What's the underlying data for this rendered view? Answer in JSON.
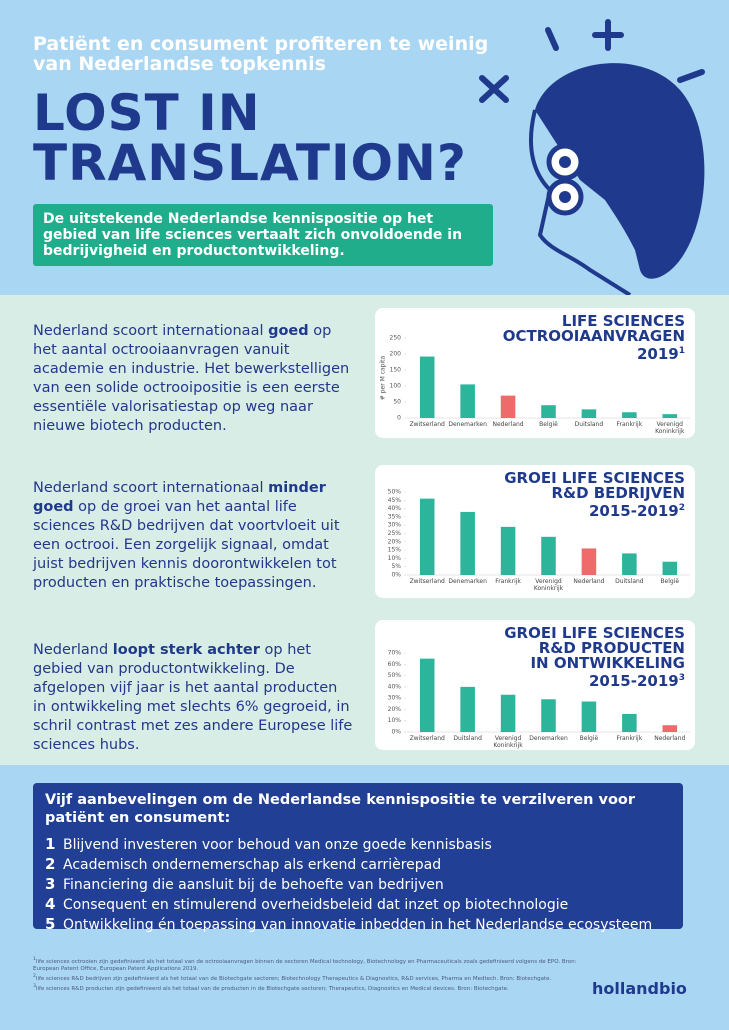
{
  "header": {
    "subtitle": "Patiënt en consument profiteren te weinig van Nederlandse topkennis",
    "title": "LOST IN TRANSLATION?",
    "intro": "De uitstekende Nederlandse kennispositie op het gebied van life sciences vertaalt zich onvoldoende in bedrijvigheid en productontwikkeling."
  },
  "sections": [
    {
      "text_before": "Nederland scoort internationaal ",
      "emphasis": "goed",
      "text_after": " op het aantal octrooiaanvragen vanuit academie en industrie. Het bewerkstelligen van een solide octrooipositie is een eerste essentiële valorisatiestap op weg naar nieuwe biotech producten."
    },
    {
      "text_before": "Nederland scoort internationaal ",
      "emphasis": "minder goed",
      "text_after": " op de groei van het aantal life sciences R&D bedrijven dat voortvloeit uit een octrooi. Een zorgelijk signaal, omdat juist bedrijven kennis doorontwikkelen tot producten en praktische toepassingen."
    },
    {
      "text_before": "Nederland ",
      "emphasis": "loopt sterk achter",
      "text_after": " op het gebied van productontwikkeling. De afgelopen vijf jaar is het aantal producten in ontwikkeling met slechts 6% gegroeid, in schril contrast met zes andere Europese life sciences hubs."
    }
  ],
  "chart_data": [
    {
      "type": "bar",
      "title": [
        "LIFE SCIENCES",
        "OCTROOIAANVRAGEN",
        "2019"
      ],
      "footnote": "1",
      "y_label": "# per M capita",
      "categories": [
        "Zwitserland",
        "Denemarken",
        "Nederland",
        "België",
        "Duitsland",
        "Frankrijk",
        "Verenigd Koninkrijk"
      ],
      "values": [
        192,
        105,
        70,
        40,
        27,
        18,
        12
      ],
      "colors": [
        "#2db59b",
        "#2db59b",
        "#ef6b6b",
        "#2db59b",
        "#2db59b",
        "#2db59b",
        "#2db59b"
      ],
      "ylim": [
        0,
        250
      ],
      "yticks": [
        0,
        50,
        100,
        150,
        200,
        250
      ]
    },
    {
      "type": "bar",
      "title": [
        "GROEI LIFE SCIENCES",
        "R&D BEDRIJVEN",
        "2015-2019"
      ],
      "footnote": "2",
      "categories": [
        "Zwitserland",
        "Denemarken",
        "Frankrijk",
        "Verenigd Koninkrijk",
        "Nederland",
        "Duitsland",
        "België"
      ],
      "values": [
        46,
        38,
        29,
        23,
        16,
        13,
        8
      ],
      "colors": [
        "#2db59b",
        "#2db59b",
        "#2db59b",
        "#2db59b",
        "#ef6b6b",
        "#2db59b",
        "#2db59b"
      ],
      "ylim": [
        0,
        50
      ],
      "yticks": [
        {
          "value": 0,
          "label": "0%"
        },
        {
          "value": 5,
          "label": "5%"
        },
        {
          "value": 10,
          "label": "10%"
        },
        {
          "value": 15,
          "label": "15%"
        },
        {
          "value": 20,
          "label": "20%"
        },
        {
          "value": 25,
          "label": "25%"
        },
        {
          "value": 30,
          "label": "30%"
        },
        {
          "value": 35,
          "label": "35%"
        },
        {
          "value": 40,
          "label": "40%"
        },
        {
          "value": 45,
          "label": "45%"
        },
        {
          "value": 50,
          "label": "50%"
        }
      ]
    },
    {
      "type": "bar",
      "title": [
        "GROEI LIFE SCIENCES",
        "R&D PRODUCTEN",
        "IN ONTWIKKELING",
        "2015-2019"
      ],
      "footnote": "3",
      "categories": [
        "Zwitserland",
        "Duitsland",
        "Verenigd Koninkrijk",
        "Denemarken",
        "België",
        "Frankrijk",
        "Nederland"
      ],
      "values": [
        65,
        40,
        33,
        29,
        27,
        16,
        6
      ],
      "colors": [
        "#2db59b",
        "#2db59b",
        "#2db59b",
        "#2db59b",
        "#2db59b",
        "#2db59b",
        "#ef6b6b"
      ],
      "ylim": [
        0,
        70
      ],
      "yticks": [
        {
          "value": 0,
          "label": "0%"
        },
        {
          "value": 10,
          "label": "10%"
        },
        {
          "value": 20,
          "label": "20%"
        },
        {
          "value": 30,
          "label": "30%"
        },
        {
          "value": 40,
          "label": "40%"
        },
        {
          "value": 50,
          "label": "50%"
        },
        {
          "value": 60,
          "label": "60%"
        },
        {
          "value": 70,
          "label": "70%"
        }
      ]
    }
  ],
  "recommendations": {
    "heading": "Vijf aanbevelingen om de Nederlandse kennispositie te verzilveren voor patiënt en consument:",
    "items": [
      {
        "number": "1",
        "text": "Blijvend investeren voor behoud van onze goede kennisbasis"
      },
      {
        "number": "2",
        "text": "Academisch ondernemerschap als erkend carrièrepad"
      },
      {
        "number": "3",
        "text": "Financiering die aansluit bij de behoefte van bedrijven"
      },
      {
        "number": "4",
        "text": "Consequent en stimulerend overheidsbeleid dat inzet op biotechnologie"
      },
      {
        "number": "5",
        "text": "Ontwikkeling én toepassing van innovatie inbedden in het Nederlandse ecosysteem"
      }
    ]
  },
  "footnotes": [
    {
      "marker": "1",
      "text": "life sciences octrooien zijn gedefinieerd als het totaal van de octrooiaanvragen binnen de sectoren Medical technology, Biotechnology en Pharmaceuticals zoals gedefinieerd volgens de EPO. Bron: European Patent Office, European Patent Applications 2019."
    },
    {
      "marker": "2",
      "text": "life sciences R&D bedrijven zijn gedefinieerd als het totaal van de Biotechgate sectoren; Biotechnology Therapeutics & Diagnostics, R&D services, Pharma en Medtech. Bron: Biotechgate."
    },
    {
      "marker": "3",
      "text": "life sciences R&D producten zijn gedefinieerd als het totaal van de producten in de Biotechgate sectoren; Therapeutics, Diagnostics en Medical devices. Bron: Biotechgate."
    }
  ],
  "logo": "hollandbio"
}
